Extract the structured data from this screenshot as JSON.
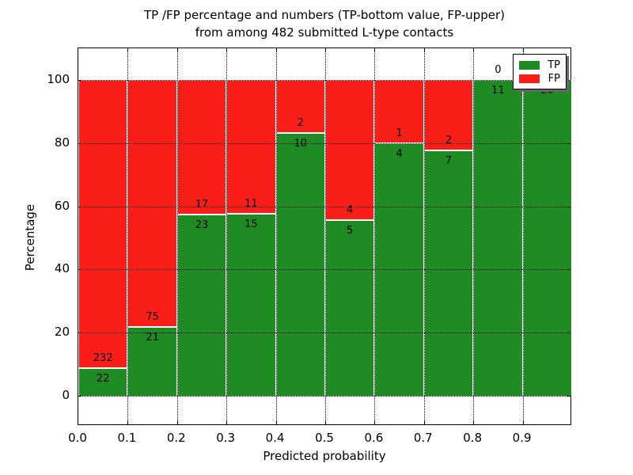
{
  "title": {
    "line1": "TP /FP percentage and numbers (TP-bottom value, FP-upper)",
    "line2": "from among 482 submitted L-type contacts"
  },
  "axes": {
    "ylabel": "Percentage",
    "xlabel": "Predicted probability",
    "y_ticks": [
      0,
      20,
      40,
      60,
      80,
      100
    ],
    "x_ticks": [
      "0.0",
      "0.1",
      "0.2",
      "0.3",
      "0.4",
      "0.5",
      "0.6",
      "0.7",
      "0.8",
      "0.9"
    ],
    "xlim": [
      0.0,
      1.0
    ],
    "ylim": [
      -9.5,
      110
    ],
    "grid": "dotted"
  },
  "legend": {
    "position": "upper right",
    "entries": [
      {
        "label": "TP",
        "color": "#1e8c23"
      },
      {
        "label": "FP",
        "color": "#fa1e19"
      }
    ]
  },
  "colors": {
    "tp_green": "#1e8c23",
    "fp_red": "#fa1e19",
    "grid": "#000000",
    "background": "#ffffff"
  },
  "chart_data": {
    "type": "bar",
    "stacked": true,
    "normalized_to_percent": 100,
    "total_contacts": 482,
    "bins": [
      "0.0-0.1",
      "0.1-0.2",
      "0.2-0.3",
      "0.3-0.4",
      "0.4-0.5",
      "0.5-0.6",
      "0.6-0.7",
      "0.7-0.8",
      "0.8-0.9",
      "0.9-1.0"
    ],
    "series": [
      {
        "name": "TP",
        "values": [
          22,
          21,
          23,
          15,
          10,
          5,
          4,
          7,
          11,
          20
        ]
      },
      {
        "name": "FP",
        "values": [
          232,
          75,
          17,
          11,
          2,
          4,
          1,
          2,
          0,
          0
        ]
      }
    ],
    "tp_percent": [
      8.7,
      21.9,
      57.5,
      57.7,
      83.3,
      55.6,
      80.0,
      77.8,
      100.0,
      100.0
    ],
    "title": "TP /FP percentage and numbers (TP-bottom value, FP-upper) from among 482 submitted L-type contacts",
    "xlabel": "Predicted probability",
    "ylabel": "Percentage"
  }
}
